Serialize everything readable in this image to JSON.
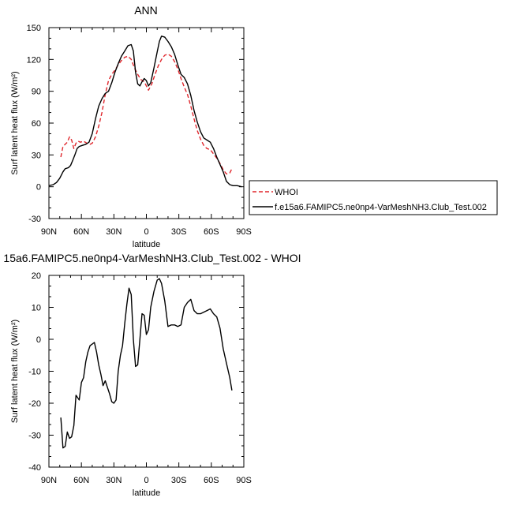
{
  "chart_data": [
    {
      "type": "line",
      "title": "ANN",
      "xlabel": "latitude",
      "ylabel": "Surf latent heat flux (W/m²)",
      "xlim": [
        90,
        -90
      ],
      "ylim": [
        -30,
        150
      ],
      "x_ticks": [
        90,
        60,
        30,
        0,
        -30,
        -60,
        -90
      ],
      "x_tick_labels": [
        "90N",
        "60N",
        "30N",
        "0",
        "30S",
        "60S",
        "90S"
      ],
      "y_ticks": [
        -30,
        0,
        30,
        60,
        90,
        120,
        150
      ],
      "y_tick_labels": [
        "-30",
        "0",
        "30",
        "60",
        "90",
        "120",
        "150"
      ],
      "legend_position": "right",
      "series": [
        {
          "name": "WHOI",
          "color": "#e0262c",
          "dash": "dashed",
          "points": [
            [
              79,
              28
            ],
            [
              77,
              38
            ],
            [
              75,
              40
            ],
            [
              73,
              42
            ],
            [
              71,
              47
            ],
            [
              69,
              44
            ],
            [
              67,
              36
            ],
            [
              65,
              41
            ],
            [
              63,
              43
            ],
            [
              61,
              42
            ],
            [
              58,
              43
            ],
            [
              55,
              41
            ],
            [
              52,
              40
            ],
            [
              50,
              41
            ],
            [
              47,
              47
            ],
            [
              44,
              57
            ],
            [
              41,
              70
            ],
            [
              38,
              87
            ],
            [
              35,
              100
            ],
            [
              32,
              106
            ],
            [
              29,
              110
            ],
            [
              26,
              115
            ],
            [
              23,
              119
            ],
            [
              20,
              122
            ],
            [
              17,
              123
            ],
            [
              14,
              120
            ],
            [
              11,
              112
            ],
            [
              8,
              106
            ],
            [
              5,
              101
            ],
            [
              2,
              99
            ],
            [
              0,
              95
            ],
            [
              -2,
              91
            ],
            [
              -5,
              97
            ],
            [
              -8,
              106
            ],
            [
              -11,
              114
            ],
            [
              -14,
              120
            ],
            [
              -17,
              124
            ],
            [
              -20,
              125
            ],
            [
              -23,
              123
            ],
            [
              -26,
              118
            ],
            [
              -29,
              111
            ],
            [
              -32,
              102
            ],
            [
              -35,
              94
            ],
            [
              -38,
              87
            ],
            [
              -41,
              76
            ],
            [
              -44,
              64
            ],
            [
              -47,
              53
            ],
            [
              -50,
              45
            ],
            [
              -53,
              39
            ],
            [
              -56,
              36
            ],
            [
              -59,
              35
            ],
            [
              -62,
              31
            ],
            [
              -65,
              27
            ],
            [
              -68,
              22
            ],
            [
              -71,
              16
            ],
            [
              -74,
              12
            ],
            [
              -77,
              13
            ],
            [
              -79,
              17
            ]
          ]
        },
        {
          "name": "f.e15a6.FAMIPC5.ne0np4-VarMeshNH3.Club_Test.002",
          "color": "#000000",
          "dash": "solid",
          "points": [
            [
              90,
              1
            ],
            [
              86,
              2
            ],
            [
              83,
              4
            ],
            [
              80,
              8
            ],
            [
              77,
              14
            ],
            [
              75,
              17
            ],
            [
              72,
              18
            ],
            [
              70,
              20
            ],
            [
              68,
              25
            ],
            [
              66,
              30
            ],
            [
              64,
              36
            ],
            [
              62,
              38
            ],
            [
              59,
              39
            ],
            [
              56,
              40
            ],
            [
              53,
              42
            ],
            [
              50,
              50
            ],
            [
              47,
              64
            ],
            [
              44,
              76
            ],
            [
              41,
              83
            ],
            [
              38,
              88
            ],
            [
              35,
              90
            ],
            [
              32,
              98
            ],
            [
              29,
              108
            ],
            [
              26,
              116
            ],
            [
              23,
              123
            ],
            [
              20,
              128
            ],
            [
              17,
              133
            ],
            [
              14,
              134
            ],
            [
              12,
              128
            ],
            [
              10,
              108
            ],
            [
              8,
              97
            ],
            [
              6,
              95
            ],
            [
              4,
              99
            ],
            [
              2,
              102
            ],
            [
              0,
              100
            ],
            [
              -2,
              95
            ],
            [
              -4,
              98
            ],
            [
              -7,
              112
            ],
            [
              -10,
              127
            ],
            [
              -12,
              137
            ],
            [
              -14,
              142
            ],
            [
              -17,
              141
            ],
            [
              -20,
              137
            ],
            [
              -23,
              132
            ],
            [
              -26,
              125
            ],
            [
              -29,
              115
            ],
            [
              -32,
              106
            ],
            [
              -35,
              103
            ],
            [
              -38,
              97
            ],
            [
              -41,
              86
            ],
            [
              -44,
              72
            ],
            [
              -47,
              61
            ],
            [
              -50,
              52
            ],
            [
              -53,
              46
            ],
            [
              -56,
              44
            ],
            [
              -59,
              42
            ],
            [
              -62,
              36
            ],
            [
              -65,
              28
            ],
            [
              -68,
              21
            ],
            [
              -71,
              14
            ],
            [
              -74,
              5
            ],
            [
              -77,
              2
            ],
            [
              -80,
              1
            ],
            [
              -84,
              1
            ],
            [
              -88,
              0
            ]
          ]
        }
      ]
    },
    {
      "type": "line",
      "title": "15a6.FAMIPC5.ne0np4-VarMeshNH3.Club_Test.002 - WHOI",
      "xlabel": "latitude",
      "ylabel": "Surf latent heat flux (W/m²)",
      "xlim": [
        90,
        -90
      ],
      "ylim": [
        -40,
        20
      ],
      "x_ticks": [
        90,
        60,
        30,
        0,
        -30,
        -60,
        -90
      ],
      "x_tick_labels": [
        "90N",
        "60N",
        "30N",
        "0",
        "30S",
        "60S",
        "90S"
      ],
      "y_ticks": [
        -40,
        -30,
        -20,
        -10,
        0,
        10,
        20
      ],
      "y_tick_labels": [
        "-40",
        "-30",
        "-20",
        "-10",
        "0",
        "10",
        "20"
      ],
      "series": [
        {
          "color": "#000000",
          "points": [
            [
              79,
              -24.5
            ],
            [
              77,
              -34
            ],
            [
              75,
              -33.5
            ],
            [
              73,
              -29
            ],
            [
              71,
              -31
            ],
            [
              69,
              -30.5
            ],
            [
              67,
              -27
            ],
            [
              65,
              -17.5
            ],
            [
              62,
              -19
            ],
            [
              60,
              -13.5
            ],
            [
              58,
              -12
            ],
            [
              56,
              -7
            ],
            [
              54,
              -4
            ],
            [
              52,
              -2
            ],
            [
              50,
              -1.5
            ],
            [
              48,
              -1
            ],
            [
              46,
              -4
            ],
            [
              44,
              -8
            ],
            [
              42,
              -11
            ],
            [
              40,
              -14.5
            ],
            [
              38,
              -13
            ],
            [
              36,
              -15
            ],
            [
              34,
              -17
            ],
            [
              32,
              -19.5
            ],
            [
              30,
              -20
            ],
            [
              28,
              -19
            ],
            [
              26,
              -10
            ],
            [
              24,
              -5
            ],
            [
              22,
              -2
            ],
            [
              20,
              5
            ],
            [
              18,
              11
            ],
            [
              16,
              16
            ],
            [
              14,
              14
            ],
            [
              12,
              0
            ],
            [
              10,
              -8.5
            ],
            [
              8,
              -8
            ],
            [
              6,
              0
            ],
            [
              4,
              8
            ],
            [
              2,
              7.5
            ],
            [
              0,
              1.5
            ],
            [
              -2,
              3
            ],
            [
              -4,
              10
            ],
            [
              -7,
              15
            ],
            [
              -10,
              18.5
            ],
            [
              -12,
              19
            ],
            [
              -14,
              17.5
            ],
            [
              -17,
              12
            ],
            [
              -20,
              4
            ],
            [
              -23,
              4.5
            ],
            [
              -26,
              4.5
            ],
            [
              -29,
              4
            ],
            [
              -32,
              4.5
            ],
            [
              -35,
              10
            ],
            [
              -38,
              11.5
            ],
            [
              -41,
              12.5
            ],
            [
              -44,
              9
            ],
            [
              -47,
              8
            ],
            [
              -50,
              8
            ],
            [
              -53,
              8.5
            ],
            [
              -56,
              9
            ],
            [
              -59,
              9.5
            ],
            [
              -62,
              8
            ],
            [
              -65,
              7
            ],
            [
              -68,
              3.5
            ],
            [
              -71,
              -3
            ],
            [
              -74,
              -7.5
            ],
            [
              -77,
              -12
            ],
            [
              -79,
              -16
            ]
          ]
        }
      ]
    }
  ]
}
